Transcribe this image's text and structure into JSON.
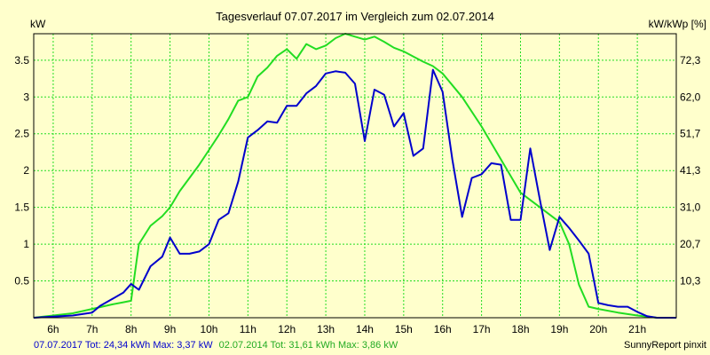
{
  "chart_data": {
    "type": "line",
    "title": "Tagesverlauf 07.07.2017 im Vergleich zum 02.07.2014",
    "ylabel_left": "kW",
    "ylabel_right": "kW/kWp [%]",
    "x_ticks": [
      "6h",
      "7h",
      "8h",
      "9h",
      "10h",
      "11h",
      "12h",
      "13h",
      "14h",
      "15h",
      "16h",
      "17h",
      "18h",
      "19h",
      "20h",
      "21h"
    ],
    "xlim": [
      5.5,
      22
    ],
    "ylim_left": [
      0,
      3.86
    ],
    "y_ticks_left": [
      "0.5",
      "1",
      "1.5",
      "2",
      "2.5",
      "3",
      "3.5"
    ],
    "y_ticks_right": [
      "10,3",
      "20,7",
      "31,0",
      "41,3",
      "51,7",
      "62,0",
      "72,3"
    ],
    "grid": true,
    "series": [
      {
        "name": "07.07.2017",
        "color": "#0000cc",
        "x": [
          5.5,
          6.5,
          7.0,
          7.2,
          7.5,
          7.8,
          8.0,
          8.2,
          8.5,
          8.8,
          9.0,
          9.25,
          9.5,
          9.75,
          10.0,
          10.25,
          10.5,
          10.75,
          11.0,
          11.25,
          11.5,
          11.75,
          12.0,
          12.25,
          12.5,
          12.75,
          13.0,
          13.25,
          13.5,
          13.75,
          14.0,
          14.25,
          14.5,
          14.75,
          15.0,
          15.25,
          15.5,
          15.75,
          16.0,
          16.25,
          16.5,
          16.75,
          17.0,
          17.25,
          17.5,
          17.75,
          18.0,
          18.25,
          18.5,
          18.75,
          19.0,
          19.25,
          19.5,
          19.75,
          20.0,
          20.25,
          20.5,
          20.75,
          21.0,
          21.25,
          21.5,
          22.0
        ],
        "values": [
          0,
          0.03,
          0.07,
          0.16,
          0.25,
          0.34,
          0.46,
          0.38,
          0.7,
          0.83,
          1.09,
          0.87,
          0.87,
          0.9,
          1.0,
          1.33,
          1.42,
          1.85,
          2.45,
          2.55,
          2.67,
          2.65,
          2.88,
          2.88,
          3.05,
          3.15,
          3.32,
          3.35,
          3.33,
          3.18,
          2.4,
          3.1,
          3.03,
          2.6,
          2.78,
          2.2,
          2.3,
          3.37,
          3.07,
          2.15,
          1.37,
          1.9,
          1.95,
          2.1,
          2.08,
          1.33,
          1.33,
          2.3,
          1.6,
          0.92,
          1.37,
          1.22,
          1.05,
          0.87,
          0.2,
          0.17,
          0.15,
          0.15,
          0.08,
          0.02,
          0,
          0
        ]
      },
      {
        "name": "02.07.2014",
        "color": "#22dd22",
        "x": [
          5.5,
          6.5,
          7.0,
          7.5,
          7.8,
          8.0,
          8.2,
          8.5,
          8.8,
          9.0,
          9.25,
          9.5,
          9.75,
          10.0,
          10.25,
          10.5,
          10.75,
          11.0,
          11.25,
          11.5,
          11.75,
          12.0,
          12.25,
          12.5,
          12.75,
          13.0,
          13.25,
          13.5,
          13.75,
          14.0,
          14.25,
          14.5,
          14.75,
          15.0,
          15.25,
          15.5,
          15.75,
          16.0,
          16.5,
          17.0,
          17.5,
          18.0,
          18.5,
          19.0,
          19.25,
          19.5,
          19.75,
          20.0,
          20.5,
          21.0,
          21.5,
          22.0
        ],
        "values": [
          0,
          0.06,
          0.12,
          0.18,
          0.21,
          0.23,
          1.0,
          1.25,
          1.38,
          1.5,
          1.72,
          1.9,
          2.08,
          2.28,
          2.48,
          2.7,
          2.95,
          3.0,
          3.28,
          3.4,
          3.56,
          3.65,
          3.52,
          3.72,
          3.65,
          3.7,
          3.8,
          3.86,
          3.82,
          3.78,
          3.82,
          3.75,
          3.67,
          3.62,
          3.55,
          3.48,
          3.42,
          3.32,
          3.0,
          2.6,
          2.15,
          1.7,
          1.5,
          1.3,
          1.0,
          0.45,
          0.15,
          0.12,
          0.07,
          0.03,
          0,
          0
        ]
      }
    ]
  },
  "footer": {
    "series1_text": "07.07.2017 Tot: 24,34 kWh Max: 3,37 kW",
    "series2_text": "02.07.2014 Tot: 31,61 kWh Max: 3,86 kW",
    "credit": "SunnyReport pinxit"
  },
  "colors": {
    "background": "#ffffcc",
    "grid": "#22dd22",
    "series1": "#0000cc",
    "series2": "#22dd22"
  }
}
